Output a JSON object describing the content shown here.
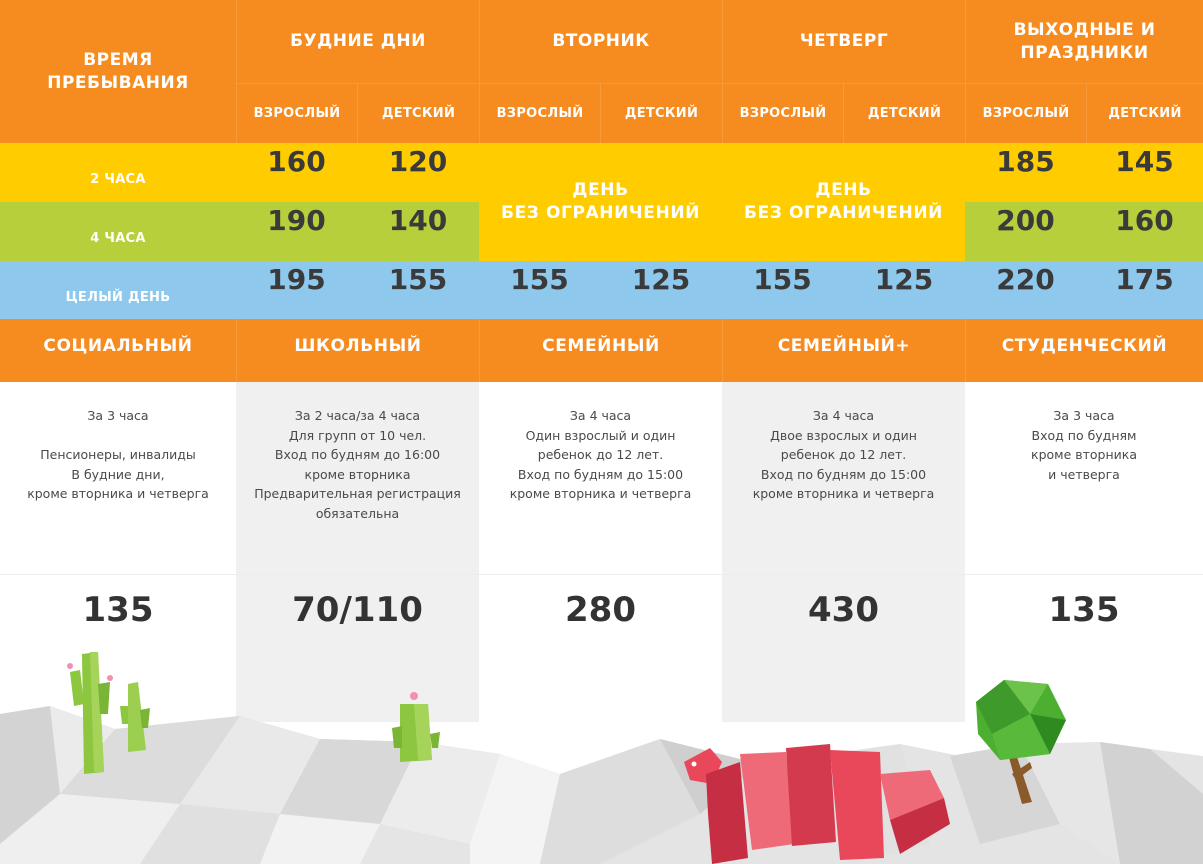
{
  "header": {
    "time_label": "ВРЕМЯ\nПРЕБЫВАНИЯ",
    "columns": [
      "БУДНИЕ ДНИ",
      "ВТОРНИК",
      "ЧЕТВЕРГ",
      "ВЫХОДНЫЕ И\nПРАЗДНИКИ"
    ],
    "sub": [
      "ВЗРОСЛЫЙ",
      "ДЕТСКИЙ"
    ]
  },
  "rows": [
    {
      "label": "2 ЧАСА",
      "weekday": [
        "160",
        "120"
      ],
      "weekend": [
        "185",
        "145"
      ]
    },
    {
      "label": "4 ЧАСА",
      "weekday": [
        "190",
        "140"
      ],
      "weekend": [
        "200",
        "160"
      ]
    },
    {
      "label": "ЦЕЛЫЙ ДЕНЬ",
      "weekday": [
        "195",
        "155"
      ],
      "tuesday": [
        "155",
        "125"
      ],
      "thursday": [
        "155",
        "125"
      ],
      "weekend": [
        "220",
        "175"
      ]
    }
  ],
  "unlimited": "ДЕНЬ\nБЕЗ ОГРАНИЧЕНИЙ",
  "plans": [
    {
      "title": "СОЦИАЛЬНЫЙ",
      "desc": "За 3 часа\n\nПенсионеры, инвалиды\nВ будние дни,\nкроме вторника и четверга",
      "price": "135"
    },
    {
      "title": "ШКОЛЬНЫЙ",
      "desc": "За 2 часа/за 4 часа\nДля групп от 10 чел.\nВход по будням до 16:00\nкроме вторника\nПредварительная регистрация\nобязательна",
      "price": "70/110"
    },
    {
      "title": "СЕМЕЙНЫЙ",
      "desc": "За 4 часа\nОдин взрослый и один\nребенок до 12 лет.\nВход по будням до 15:00\nкроме вторника и четверга",
      "price": "280"
    },
    {
      "title": "СЕМЕЙНЫЙ+",
      "desc": "За 4 часа\nДвое взрослых и один\nребенок до 12 лет.\nВход по будням до 15:00\nкроме вторника и четверга",
      "price": "430"
    },
    {
      "title": "СТУДЕНЧЕСКИЙ",
      "desc": "За 3 часа\nВход по будням\nкроме вторника\nи четверга",
      "price": "135"
    }
  ],
  "colors": {
    "orange": "#f68b1f",
    "yellow": "#ffcc00",
    "green": "#b6cf3a",
    "blue": "#8ec8ec",
    "gray": "#f0f0f0"
  }
}
